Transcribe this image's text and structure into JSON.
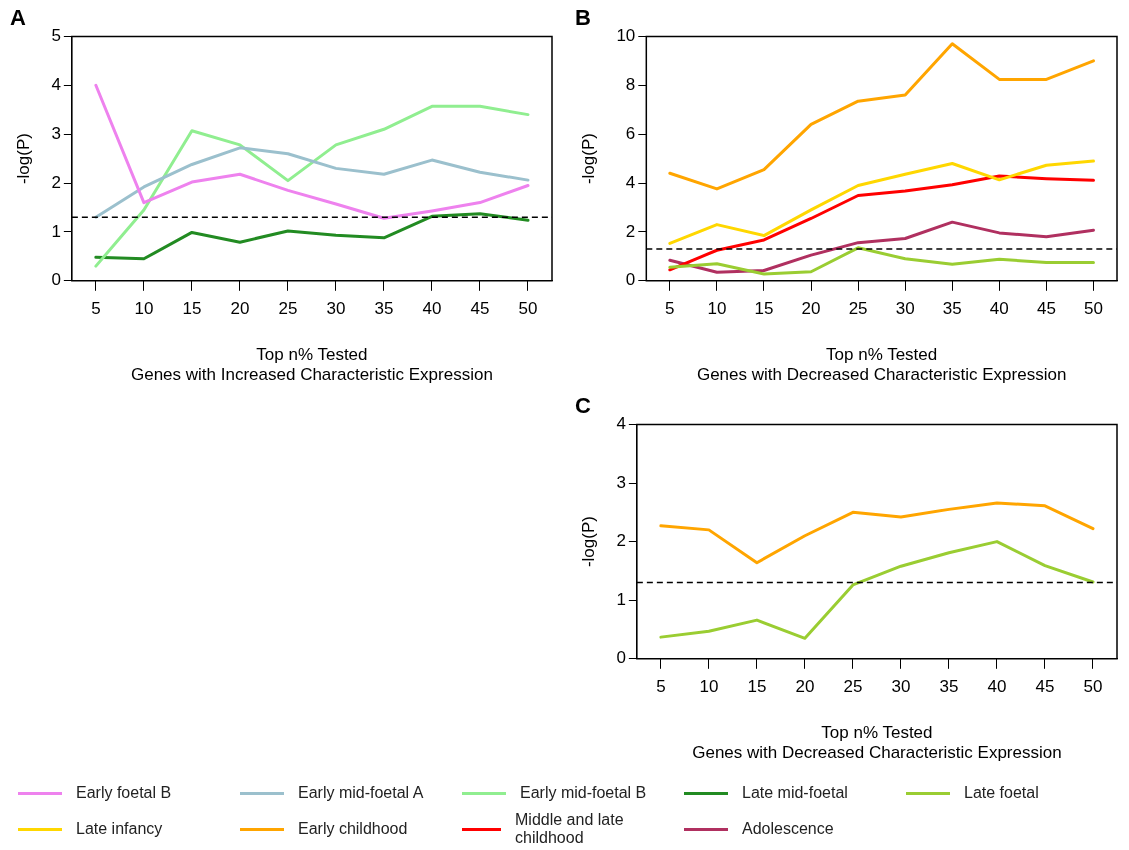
{
  "chart_data": [
    {
      "type": "line",
      "title": "A",
      "xlabel": "Top n% Tested\nGenes with Increased Characteristic Expression",
      "ylabel": "-log(P)",
      "categories": [
        "5",
        "10",
        "15",
        "20",
        "25",
        "30",
        "35",
        "40",
        "45",
        "50"
      ],
      "ylim": [
        0,
        5
      ],
      "yticks": [
        0,
        1,
        2,
        3,
        4,
        5
      ],
      "grid": false,
      "legend": "bottom",
      "marker": "none",
      "line_style": "solid",
      "ref_lines": [
        {
          "axis": "y",
          "value": 1.3,
          "line_style": "dashed",
          "color": "#000000"
        }
      ],
      "series": [
        {
          "name": "Early foetal B",
          "color": "#ee82ee",
          "values": [
            4.0,
            1.6,
            2.02,
            2.18,
            1.85,
            1.57,
            1.28,
            1.43,
            1.6,
            1.95
          ]
        },
        {
          "name": "Early mid-foetal A",
          "color": "#9bc0cd",
          "values": [
            1.3,
            1.92,
            2.38,
            2.72,
            2.6,
            2.3,
            2.18,
            2.47,
            2.22,
            2.06
          ]
        },
        {
          "name": "Early mid-foetal B",
          "color": "#90ee90",
          "values": [
            0.3,
            1.45,
            3.07,
            2.78,
            2.05,
            2.78,
            3.1,
            3.57,
            3.57,
            3.4
          ]
        },
        {
          "name": "Late mid-foetal",
          "color": "#228b22",
          "values": [
            0.48,
            0.45,
            0.99,
            0.79,
            1.02,
            0.93,
            0.88,
            1.32,
            1.37,
            1.24
          ]
        }
      ]
    },
    {
      "type": "line",
      "title": "B",
      "xlabel": "Top n% Tested\nGenes with Decreased Characteristic Expression",
      "ylabel": "-log(P)",
      "categories": [
        "5",
        "10",
        "15",
        "20",
        "25",
        "30",
        "35",
        "40",
        "45",
        "50"
      ],
      "ylim": [
        0,
        10
      ],
      "yticks": [
        0,
        2,
        4,
        6,
        8,
        10
      ],
      "grid": false,
      "legend": "bottom",
      "marker": "none",
      "line_style": "solid",
      "ref_lines": [
        {
          "axis": "y",
          "value": 1.3,
          "line_style": "dashed",
          "color": "#000000"
        }
      ],
      "series": [
        {
          "name": "Late foetal",
          "color": "#9acd32",
          "values": [
            0.55,
            0.7,
            0.28,
            0.37,
            1.35,
            0.9,
            0.68,
            0.88,
            0.75,
            0.75
          ]
        },
        {
          "name": "Late infancy",
          "color": "#ffd700",
          "values": [
            1.53,
            2.3,
            1.85,
            2.9,
            3.9,
            4.36,
            4.8,
            4.13,
            4.73,
            4.9
          ]
        },
        {
          "name": "Early childhood",
          "color": "#ffa500",
          "values": [
            4.4,
            3.76,
            4.55,
            6.4,
            7.35,
            7.6,
            9.7,
            8.24,
            8.24,
            9.0
          ]
        },
        {
          "name": "Middle and late childhood",
          "color": "#ff0000",
          "values": [
            0.45,
            1.25,
            1.67,
            2.55,
            3.49,
            3.67,
            3.93,
            4.29,
            4.18,
            4.11
          ]
        },
        {
          "name": "Adolescence",
          "color": "#b03060",
          "values": [
            0.84,
            0.35,
            0.42,
            1.05,
            1.56,
            1.73,
            2.4,
            1.96,
            1.8,
            2.07
          ]
        }
      ]
    },
    {
      "type": "line",
      "title": "C",
      "xlabel": "Top n% Tested\nGenes with Decreased Characteristic Expression",
      "ylabel": "-log(P)",
      "categories": [
        "5",
        "10",
        "15",
        "20",
        "25",
        "30",
        "35",
        "40",
        "45",
        "50"
      ],
      "ylim": [
        0,
        4
      ],
      "yticks": [
        0,
        1,
        2,
        3,
        4
      ],
      "grid": false,
      "legend": "bottom",
      "marker": "none",
      "line_style": "solid",
      "ref_lines": [
        {
          "axis": "y",
          "value": 1.3,
          "line_style": "dashed",
          "color": "#000000"
        }
      ],
      "series": [
        {
          "name": "Early childhood",
          "color": "#ffa500",
          "values": [
            2.27,
            2.2,
            1.64,
            2.1,
            2.5,
            2.42,
            2.55,
            2.66,
            2.61,
            2.22
          ]
        },
        {
          "name": "Late foetal",
          "color": "#9acd32",
          "values": [
            0.37,
            0.47,
            0.66,
            0.35,
            1.26,
            1.58,
            1.81,
            2.0,
            1.59,
            1.31
          ]
        }
      ]
    }
  ]
}
